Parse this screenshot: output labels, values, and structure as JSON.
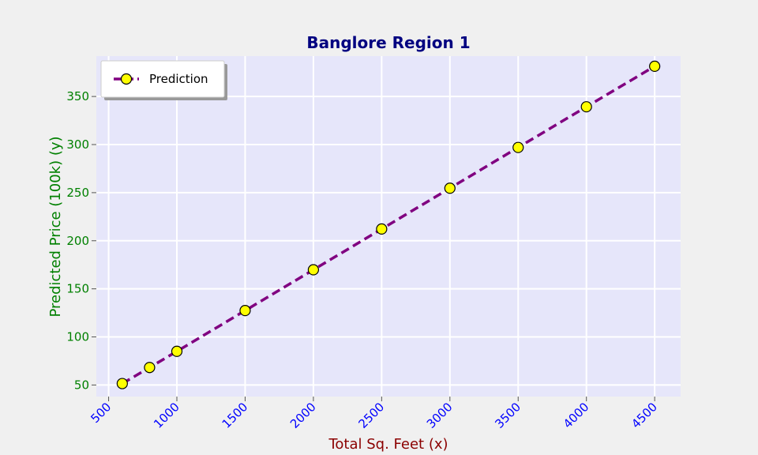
{
  "chart_data": {
    "type": "line",
    "title": "Banglore Region 1",
    "xlabel": "Total Sq. Feet (x)",
    "ylabel": "Predicted Price (100k) (y)",
    "xlim": [
      410,
      4690
    ],
    "ylim": [
      38,
      392
    ],
    "xticks": [
      500,
      1000,
      1500,
      2000,
      2500,
      3000,
      3500,
      4000,
      4500
    ],
    "yticks": [
      50,
      100,
      150,
      200,
      250,
      300,
      350
    ],
    "grid": true,
    "legend_position": "top-left",
    "series": [
      {
        "name": "Prediction",
        "x": [
          600,
          800,
          1000,
          1500,
          2000,
          2500,
          3000,
          3500,
          4000,
          4500
        ],
        "y": [
          51.5,
          68.2,
          85.0,
          127.4,
          169.8,
          212.2,
          254.6,
          297.0,
          339.3,
          381.4
        ]
      }
    ],
    "colors": {
      "title": "#000080",
      "xlabel": "#8b0000",
      "ylabel": "#008000",
      "xtick": "#0000ff",
      "ytick": "#008000",
      "line": "#800080",
      "marker_fill": "#ffff00",
      "plot_bg": "#e6e6fa",
      "figure_bg": "#f0f0f0"
    }
  }
}
